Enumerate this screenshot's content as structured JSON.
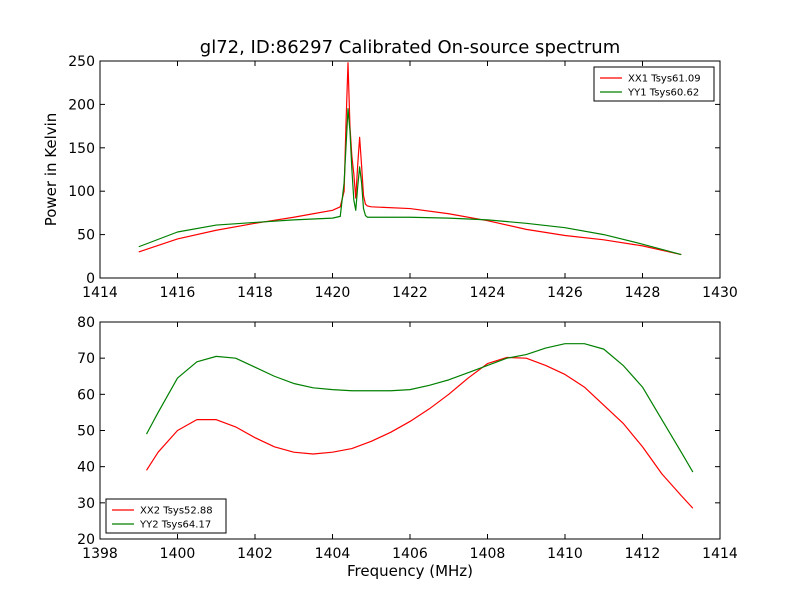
{
  "chart_data": [
    {
      "type": "line",
      "title": "gl72, ID:86297 Calibrated On-source spectrum",
      "xlabel": "",
      "ylabel": "Power in Kelvin",
      "xlim": [
        1414,
        1430
      ],
      "ylim": [
        0,
        250
      ],
      "xticks": [
        "1414",
        "1416",
        "1418",
        "1420",
        "1422",
        "1424",
        "1426",
        "1428",
        "1430"
      ],
      "yticks": [
        "0",
        "50",
        "100",
        "150",
        "200",
        "250"
      ],
      "legend_position": "upper-right",
      "grid": false,
      "series": [
        {
          "name": "XX1 Tsys61.09",
          "color": "#ff0000",
          "x": [
            1415.0,
            1416.0,
            1417.0,
            1418.0,
            1419.0,
            1419.5,
            1420.0,
            1420.2,
            1420.3,
            1420.35,
            1420.4,
            1420.45,
            1420.5,
            1420.55,
            1420.6,
            1420.65,
            1420.7,
            1420.75,
            1420.8,
            1420.85,
            1420.9,
            1421.0,
            1422.0,
            1423.0,
            1424.0,
            1425.0,
            1426.0,
            1427.0,
            1428.0,
            1429.0
          ],
          "y": [
            30,
            45,
            55,
            63,
            70,
            74,
            78,
            82,
            100,
            180,
            248,
            175,
            140,
            120,
            92,
            130,
            162,
            130,
            95,
            85,
            83,
            82,
            80,
            74,
            66,
            56,
            49,
            44,
            37,
            27
          ]
        },
        {
          "name": "YY1 Tsys60.62",
          "color": "#008000",
          "x": [
            1415.0,
            1416.0,
            1417.0,
            1418.0,
            1419.0,
            1420.0,
            1420.2,
            1420.3,
            1420.4,
            1420.45,
            1420.5,
            1420.55,
            1420.6,
            1420.65,
            1420.7,
            1420.75,
            1420.8,
            1420.85,
            1420.9,
            1421.0,
            1422.0,
            1423.0,
            1424.0,
            1425.0,
            1426.0,
            1427.0,
            1428.0,
            1429.0
          ],
          "y": [
            36,
            53,
            61,
            64,
            67,
            69,
            71,
            110,
            195,
            170,
            125,
            90,
            78,
            105,
            128,
            110,
            80,
            72,
            70,
            70,
            70,
            69,
            67,
            63,
            58,
            50,
            39,
            27
          ]
        }
      ]
    },
    {
      "type": "line",
      "title": "",
      "xlabel": "Frequency (MHz)",
      "ylabel": "",
      "xlim": [
        1398,
        1414
      ],
      "ylim": [
        20,
        80
      ],
      "xticks": [
        "1398",
        "1400",
        "1402",
        "1404",
        "1406",
        "1408",
        "1410",
        "1412",
        "1414"
      ],
      "yticks": [
        "20",
        "30",
        "40",
        "50",
        "60",
        "70",
        "80"
      ],
      "legend_position": "lower-left",
      "grid": false,
      "series": [
        {
          "name": "XX2 Tsys52.88",
          "color": "#ff0000",
          "x": [
            1399.2,
            1399.5,
            1400.0,
            1400.5,
            1401.0,
            1401.5,
            1402.0,
            1402.5,
            1403.0,
            1403.5,
            1404.0,
            1404.5,
            1405.0,
            1405.5,
            1406.0,
            1406.5,
            1407.0,
            1407.5,
            1408.0,
            1408.5,
            1409.0,
            1409.5,
            1410.0,
            1410.5,
            1411.0,
            1411.5,
            1412.0,
            1412.5,
            1413.0,
            1413.3
          ],
          "y": [
            39,
            44,
            50,
            53,
            53,
            51,
            48,
            45.5,
            44,
            43.5,
            44,
            45,
            47,
            49.5,
            52.5,
            56,
            60,
            64.5,
            68.5,
            70.2,
            70,
            68,
            65.5,
            62,
            57,
            52,
            45.5,
            38,
            32,
            28.5
          ]
        },
        {
          "name": "YY2 Tsys64.17",
          "color": "#008000",
          "x": [
            1399.2,
            1399.5,
            1400.0,
            1400.5,
            1401.0,
            1401.5,
            1402.0,
            1402.5,
            1403.0,
            1403.5,
            1404.0,
            1404.5,
            1405.0,
            1405.5,
            1406.0,
            1406.5,
            1407.0,
            1407.5,
            1408.0,
            1408.5,
            1409.0,
            1409.5,
            1410.0,
            1410.5,
            1411.0,
            1411.5,
            1412.0,
            1412.5,
            1413.0,
            1413.3
          ],
          "y": [
            49,
            55,
            64.5,
            69,
            70.5,
            70,
            67.5,
            65,
            63,
            61.8,
            61.3,
            61,
            61,
            61,
            61.3,
            62.5,
            64,
            66,
            68,
            70,
            71,
            72.8,
            74,
            74,
            72.5,
            68,
            62,
            53,
            44,
            38.5
          ]
        }
      ]
    }
  ]
}
